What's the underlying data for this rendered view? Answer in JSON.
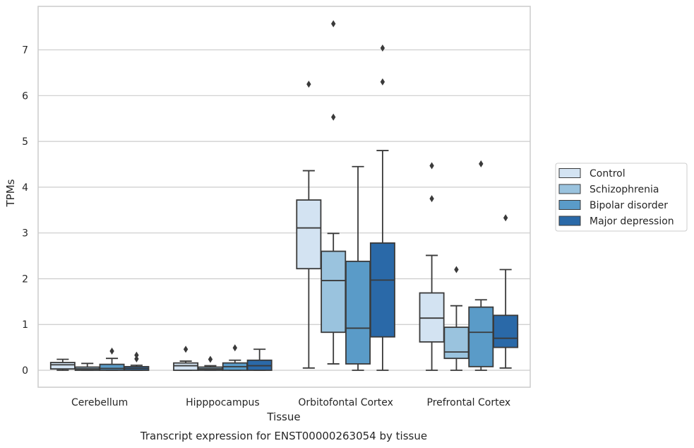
{
  "chart_data": {
    "type": "box",
    "title": "Transcript expression for ENST00000263054 by tissue",
    "xlabel": "Tissue",
    "ylabel": "TPMs",
    "ylim": [
      -0.37,
      7.95
    ],
    "yticks": [
      0,
      1,
      2,
      3,
      4,
      5,
      6,
      7
    ],
    "grid": "horizontal",
    "legend_position": "right",
    "categories": [
      "Cerebellum",
      "Hipppocampus",
      "Orbitofontal Cortex",
      "Prefrontal Cortex"
    ],
    "series": [
      {
        "name": "Control",
        "color": "#d3e3f2",
        "boxes": [
          {
            "whisker_low": 0.0,
            "q1": 0.03,
            "median": 0.12,
            "q3": 0.17,
            "whisker_high": 0.24,
            "outliers": []
          },
          {
            "whisker_low": 0.0,
            "q1": 0.0,
            "median": 0.1,
            "q3": 0.16,
            "whisker_high": 0.2,
            "outliers": [
              0.46
            ]
          },
          {
            "whisker_low": 0.05,
            "q1": 2.22,
            "median": 3.11,
            "q3": 3.72,
            "whisker_high": 4.36,
            "outliers": [
              6.25
            ]
          },
          {
            "whisker_low": 0.0,
            "q1": 0.62,
            "median": 1.14,
            "q3": 1.69,
            "whisker_high": 2.51,
            "outliers": [
              3.75,
              4.47
            ]
          }
        ]
      },
      {
        "name": "Schizophrenia",
        "color": "#9ac3de",
        "boxes": [
          {
            "whisker_low": 0.0,
            "q1": 0.0,
            "median": 0.03,
            "q3": 0.07,
            "whisker_high": 0.15,
            "outliers": []
          },
          {
            "whisker_low": 0.0,
            "q1": 0.0,
            "median": 0.03,
            "q3": 0.07,
            "whisker_high": 0.1,
            "outliers": [
              0.24
            ]
          },
          {
            "whisker_low": 0.14,
            "q1": 0.83,
            "median": 1.96,
            "q3": 2.6,
            "whisker_high": 2.99,
            "outliers": [
              5.53,
              7.57
            ]
          },
          {
            "whisker_low": 0.0,
            "q1": 0.26,
            "median": 0.4,
            "q3": 0.94,
            "whisker_high": 1.41,
            "outliers": [
              2.2
            ]
          }
        ]
      },
      {
        "name": "Bipolar disorder",
        "color": "#5a9bc8",
        "boxes": [
          {
            "whisker_low": 0.0,
            "q1": 0.0,
            "median": 0.04,
            "q3": 0.13,
            "whisker_high": 0.26,
            "outliers": [
              0.42
            ]
          },
          {
            "whisker_low": 0.0,
            "q1": 0.0,
            "median": 0.08,
            "q3": 0.16,
            "whisker_high": 0.22,
            "outliers": [
              0.49
            ]
          },
          {
            "whisker_low": 0.0,
            "q1": 0.14,
            "median": 0.92,
            "q3": 2.38,
            "whisker_high": 4.45,
            "outliers": []
          },
          {
            "whisker_low": 0.0,
            "q1": 0.08,
            "median": 0.83,
            "q3": 1.38,
            "whisker_high": 1.54,
            "outliers": [
              4.51
            ]
          }
        ]
      },
      {
        "name": "Major depression",
        "color": "#2a69a8",
        "boxes": [
          {
            "whisker_low": 0.0,
            "q1": 0.0,
            "median": 0.04,
            "q3": 0.08,
            "whisker_high": 0.11,
            "outliers": [
              0.25,
              0.33
            ]
          },
          {
            "whisker_low": 0.0,
            "q1": 0.0,
            "median": 0.1,
            "q3": 0.22,
            "whisker_high": 0.46,
            "outliers": []
          },
          {
            "whisker_low": 0.0,
            "q1": 0.73,
            "median": 1.97,
            "q3": 2.78,
            "whisker_high": 4.8,
            "outliers": [
              6.3,
              7.04
            ]
          },
          {
            "whisker_low": 0.05,
            "q1": 0.5,
            "median": 0.7,
            "q3": 1.2,
            "whisker_high": 2.2,
            "outliers": [
              3.33
            ]
          }
        ]
      }
    ]
  }
}
